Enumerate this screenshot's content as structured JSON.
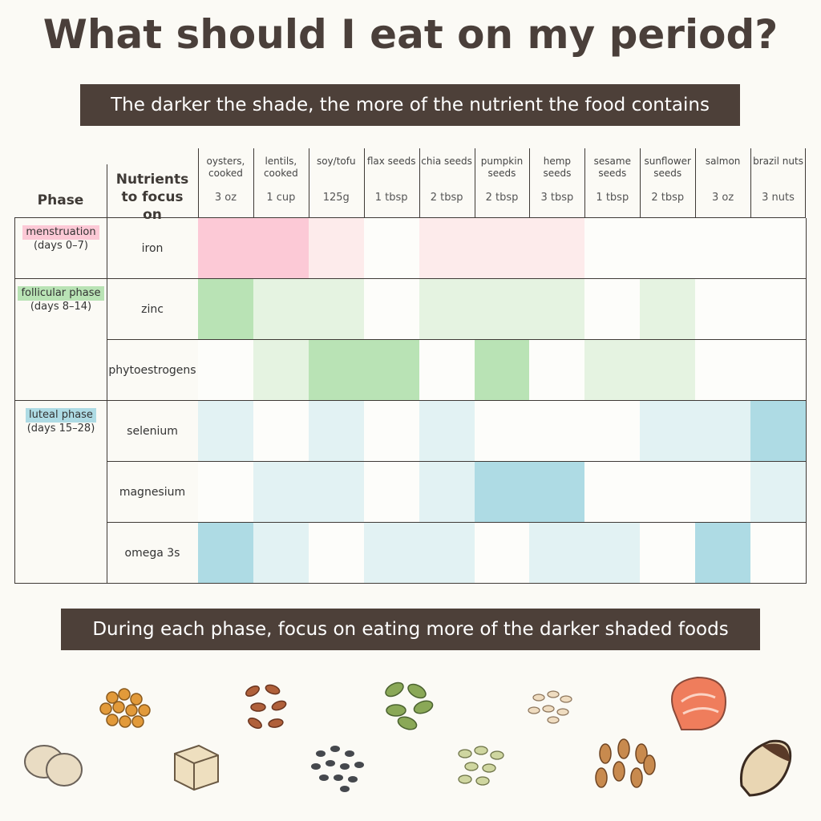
{
  "title": "What should I eat on my period?",
  "subtitle": "The darker the shade, the more of the nutrient the food contains",
  "footer": "During each phase, focus on eating more of the darker shaded foods",
  "table": {
    "headers": {
      "phase": "Phase",
      "nutrients": "Nutrients to focus on"
    },
    "foods": [
      {
        "name": "oysters, cooked",
        "amount": "3 oz"
      },
      {
        "name": "lentils, cooked",
        "amount": "1 cup"
      },
      {
        "name": "soy/tofu",
        "amount": "125g"
      },
      {
        "name": "flax seeds",
        "amount": "1 tbsp"
      },
      {
        "name": "chia seeds",
        "amount": "2 tbsp"
      },
      {
        "name": "pumpkin seeds",
        "amount": "2 tbsp"
      },
      {
        "name": "hemp seeds",
        "amount": "3 tbsp"
      },
      {
        "name": "sesame seeds",
        "amount": "1 tbsp"
      },
      {
        "name": "sunflower seeds",
        "amount": "2 tbsp"
      },
      {
        "name": "salmon",
        "amount": "3 oz"
      },
      {
        "name": "brazil nuts",
        "amount": "3 nuts"
      }
    ],
    "phases": [
      {
        "name": "menstruation",
        "days": "(days 0–7)",
        "color": "#fcc9d6",
        "rows": [
          {
            "nutrient": "iron",
            "cells": [
              "#fcc9d6",
              "#fcc9d6",
              "#fdebeb",
              "#fdfdfa",
              "#fdebeb",
              "#fdebeb",
              "#fdebeb",
              "#fdfdfa",
              "#fdfdfa",
              "#fdfdfa",
              "#fdfdfa"
            ]
          }
        ]
      },
      {
        "name": "follicular phase",
        "days": "(days 8–14)",
        "color": "#b9e3b5",
        "rows": [
          {
            "nutrient": "zinc",
            "cells": [
              "#b9e3b5",
              "#e5f3e1",
              "#e5f3e1",
              "#fdfdfa",
              "#e5f3e1",
              "#e5f3e1",
              "#e5f3e1",
              "#fdfdfa",
              "#e5f3e1",
              "#fdfdfa",
              "#fdfdfa"
            ]
          },
          {
            "nutrient": "phytoestrogens",
            "cells": [
              "#fdfdfa",
              "#e5f3e1",
              "#b9e3b5",
              "#b9e3b5",
              "#fdfdfa",
              "#b9e3b5",
              "#fdfdfa",
              "#e5f3e1",
              "#e5f3e1",
              "#fdfdfa",
              "#fdfdfa"
            ]
          }
        ]
      },
      {
        "name": "luteal phase",
        "days": "(days 15–28)",
        "color": "#aedbe4",
        "rows": [
          {
            "nutrient": "selenium",
            "cells": [
              "#e2f2f3",
              "#fdfdfa",
              "#e2f2f3",
              "#fdfdfa",
              "#e2f2f3",
              "#fdfdfa",
              "#fdfdfa",
              "#fdfdfa",
              "#e2f2f3",
              "#e2f2f3",
              "#aedbe4"
            ]
          },
          {
            "nutrient": "magnesium",
            "cells": [
              "#fdfdfa",
              "#e2f2f3",
              "#e2f2f3",
              "#fdfdfa",
              "#e2f2f3",
              "#aedbe4",
              "#aedbe4",
              "#fdfdfa",
              "#fdfdfa",
              "#fdfdfa",
              "#e2f2f3"
            ]
          },
          {
            "nutrient": "omega 3s",
            "cells": [
              "#aedbe4",
              "#e2f2f3",
              "#fdfdfa",
              "#e2f2f3",
              "#e2f2f3",
              "#fdfdfa",
              "#e2f2f3",
              "#e2f2f3",
              "#fdfdfa",
              "#aedbe4",
              "#fdfdfa"
            ]
          }
        ]
      }
    ]
  }
}
